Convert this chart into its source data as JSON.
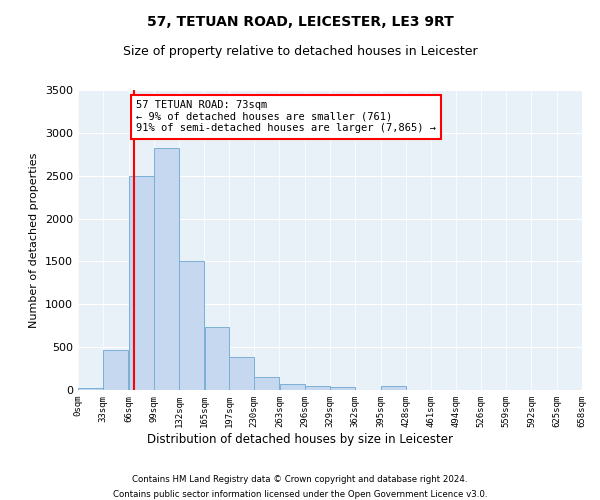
{
  "title": "57, TETUAN ROAD, LEICESTER, LE3 9RT",
  "subtitle": "Size of property relative to detached houses in Leicester",
  "xlabel": "Distribution of detached houses by size in Leicester",
  "ylabel": "Number of detached properties",
  "bar_color": "#c5d8f0",
  "bar_edge_color": "#7aafd4",
  "background_color": "#e8f0f8",
  "annotation_text": "57 TETUAN ROAD: 73sqm\n← 9% of detached houses are smaller (761)\n91% of semi-detached houses are larger (7,865) →",
  "property_size": 73,
  "red_line_x": 73,
  "bin_edges": [
    0,
    33,
    66,
    99,
    132,
    165,
    197,
    230,
    263,
    296,
    329,
    362,
    395,
    428,
    461,
    494,
    526,
    559,
    592,
    625,
    658
  ],
  "bin_labels": [
    "0sqm",
    "33sqm",
    "66sqm",
    "99sqm",
    "132sqm",
    "165sqm",
    "197sqm",
    "230sqm",
    "263sqm",
    "296sqm",
    "329sqm",
    "362sqm",
    "395sqm",
    "428sqm",
    "461sqm",
    "494sqm",
    "526sqm",
    "559sqm",
    "592sqm",
    "625sqm",
    "658sqm"
  ],
  "bar_heights": [
    20,
    470,
    2500,
    2820,
    1500,
    730,
    390,
    155,
    65,
    50,
    40,
    0,
    45,
    0,
    0,
    0,
    0,
    0,
    0,
    0
  ],
  "ylim": [
    0,
    3500
  ],
  "yticks": [
    0,
    500,
    1000,
    1500,
    2000,
    2500,
    3000,
    3500
  ],
  "footer_line1": "Contains HM Land Registry data © Crown copyright and database right 2024.",
  "footer_line2": "Contains public sector information licensed under the Open Government Licence v3.0."
}
